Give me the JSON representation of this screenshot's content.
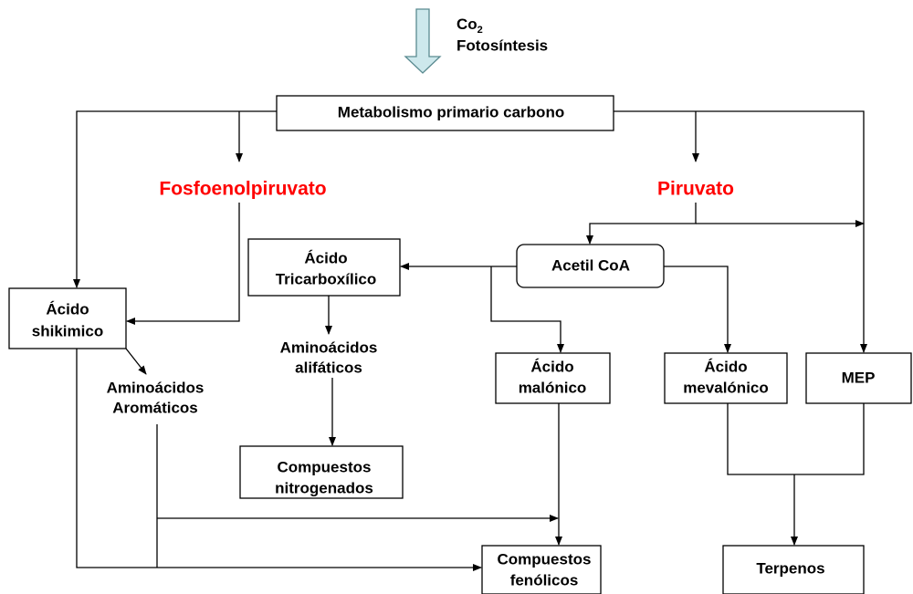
{
  "header": {
    "co": "Co",
    "co_sub": "2",
    "process": "Fotosíntesis"
  },
  "nodes": [
    {
      "lines": [
        "Metabolismo primario carbono"
      ]
    },
    {
      "lines": [
        "Fosfoenolpiruvato"
      ]
    },
    {
      "lines": [
        "Piruvato"
      ]
    },
    {
      "lines": [
        "Ácido",
        "Tricarboxílico"
      ]
    },
    {
      "lines": [
        "Acetil CoA"
      ]
    },
    {
      "lines": [
        "Ácido",
        "shikimico"
      ]
    },
    {
      "lines": [
        "Aminoácidos",
        "alifáticos"
      ]
    },
    {
      "lines": [
        "Aminoácidos",
        "Aromáticos"
      ]
    },
    {
      "lines": [
        "Ácido",
        "malónico"
      ]
    },
    {
      "lines": [
        "Ácido",
        "mevalónico"
      ]
    },
    {
      "lines": [
        "MEP"
      ]
    },
    {
      "lines": [
        "Compuestos",
        "nitrogenados"
      ]
    },
    {
      "lines": [
        "Compuestos",
        "fenólicos"
      ]
    },
    {
      "lines": [
        "Terpenos"
      ]
    }
  ]
}
